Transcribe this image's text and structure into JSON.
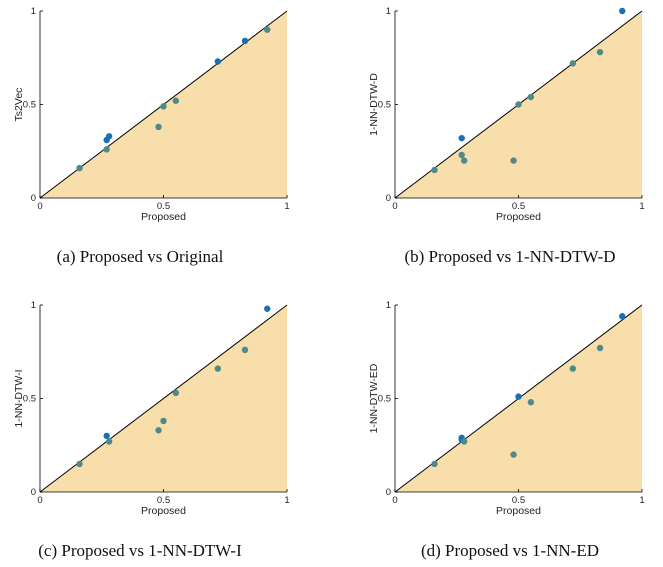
{
  "colors": {
    "region_fill": "#f7deaa",
    "diagonal": "#000000",
    "point_above": "#1a6fb0",
    "point_below": "#4e8a8a"
  },
  "chart_data": [
    {
      "type": "scatter",
      "caption": "(a) Proposed vs Original",
      "xlabel": "Proposed",
      "ylabel": "Ts2Vec",
      "xlim": [
        0,
        1
      ],
      "ylim": [
        0,
        1
      ],
      "xticks": [
        0,
        0.5,
        1
      ],
      "yticks": [
        0,
        0.5,
        1
      ],
      "xtick_labels": [
        "0",
        "0.5",
        "1"
      ],
      "ytick_labels": [
        "0",
        "0.5",
        "1"
      ],
      "diagonal": true,
      "points": [
        {
          "x": 0.16,
          "y": 0.16
        },
        {
          "x": 0.27,
          "y": 0.26
        },
        {
          "x": 0.27,
          "y": 0.31
        },
        {
          "x": 0.28,
          "y": 0.33
        },
        {
          "x": 0.48,
          "y": 0.38
        },
        {
          "x": 0.5,
          "y": 0.49
        },
        {
          "x": 0.55,
          "y": 0.52
        },
        {
          "x": 0.72,
          "y": 0.73
        },
        {
          "x": 0.83,
          "y": 0.84
        },
        {
          "x": 0.92,
          "y": 0.9
        }
      ]
    },
    {
      "type": "scatter",
      "caption": "(b) Proposed vs 1-NN-DTW-D",
      "xlabel": "Proposed",
      "ylabel": "1-NN-DTW-D",
      "xlim": [
        0,
        1
      ],
      "ylim": [
        0,
        1
      ],
      "xticks": [
        0,
        0.5,
        1
      ],
      "yticks": [
        0,
        0.5,
        1
      ],
      "xtick_labels": [
        "0",
        "0.5",
        "1"
      ],
      "ytick_labels": [
        "0",
        "0.5",
        "1"
      ],
      "diagonal": true,
      "points": [
        {
          "x": 0.16,
          "y": 0.15
        },
        {
          "x": 0.27,
          "y": 0.32
        },
        {
          "x": 0.27,
          "y": 0.23
        },
        {
          "x": 0.28,
          "y": 0.2
        },
        {
          "x": 0.48,
          "y": 0.2
        },
        {
          "x": 0.5,
          "y": 0.5
        },
        {
          "x": 0.55,
          "y": 0.54
        },
        {
          "x": 0.72,
          "y": 0.72
        },
        {
          "x": 0.83,
          "y": 0.78
        },
        {
          "x": 0.92,
          "y": 1.0
        }
      ]
    },
    {
      "type": "scatter",
      "caption": "(c) Proposed vs 1-NN-DTW-I",
      "xlabel": "Proposed",
      "ylabel": "1-NN-DTW-I",
      "xlim": [
        0,
        1
      ],
      "ylim": [
        0,
        1
      ],
      "xticks": [
        0,
        0.5,
        1
      ],
      "yticks": [
        0,
        0.5,
        1
      ],
      "xtick_labels": [
        "0",
        "0.5",
        "1"
      ],
      "ytick_labels": [
        "0",
        "0.5",
        "1"
      ],
      "diagonal": true,
      "points": [
        {
          "x": 0.16,
          "y": 0.15
        },
        {
          "x": 0.27,
          "y": 0.3
        },
        {
          "x": 0.28,
          "y": 0.27
        },
        {
          "x": 0.48,
          "y": 0.33
        },
        {
          "x": 0.5,
          "y": 0.38
        },
        {
          "x": 0.55,
          "y": 0.53
        },
        {
          "x": 0.72,
          "y": 0.66
        },
        {
          "x": 0.83,
          "y": 0.76
        },
        {
          "x": 0.92,
          "y": 0.98
        }
      ]
    },
    {
      "type": "scatter",
      "caption": "(d) Proposed vs 1-NN-ED",
      "xlabel": "Proposed",
      "ylabel": "1-NN-DTW-ED",
      "xlim": [
        0,
        1
      ],
      "ylim": [
        0,
        1
      ],
      "xticks": [
        0,
        0.5,
        1
      ],
      "yticks": [
        0,
        0.5,
        1
      ],
      "xtick_labels": [
        "0",
        "0.5",
        "1"
      ],
      "ytick_labels": [
        "0",
        "0.5",
        "1"
      ],
      "diagonal": true,
      "points": [
        {
          "x": 0.16,
          "y": 0.15
        },
        {
          "x": 0.27,
          "y": 0.29
        },
        {
          "x": 0.27,
          "y": 0.28
        },
        {
          "x": 0.28,
          "y": 0.27
        },
        {
          "x": 0.48,
          "y": 0.2
        },
        {
          "x": 0.5,
          "y": 0.51
        },
        {
          "x": 0.55,
          "y": 0.48
        },
        {
          "x": 0.72,
          "y": 0.66
        },
        {
          "x": 0.83,
          "y": 0.77
        },
        {
          "x": 0.92,
          "y": 0.94
        }
      ]
    }
  ]
}
